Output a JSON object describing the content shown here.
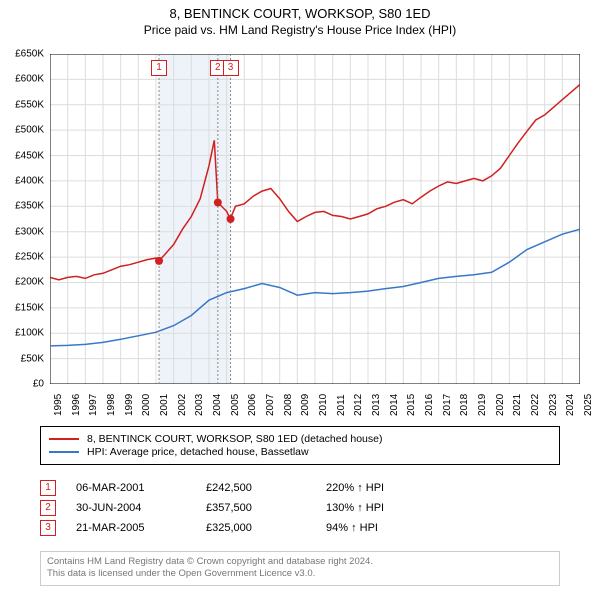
{
  "title": "8, BENTINCK COURT, WORKSOP, S80 1ED",
  "subtitle": "Price paid vs. HM Land Registry's House Price Index (HPI)",
  "chart": {
    "type": "line",
    "background_color": "#ffffff",
    "grid_color": "#dcdcdc",
    "axis_color": "#000000",
    "x_years": [
      1995,
      1996,
      1997,
      1998,
      1999,
      2000,
      2001,
      2002,
      2003,
      2004,
      2005,
      2006,
      2007,
      2008,
      2009,
      2010,
      2011,
      2012,
      2013,
      2014,
      2015,
      2016,
      2017,
      2018,
      2019,
      2020,
      2021,
      2022,
      2023,
      2024,
      2025
    ],
    "ylim": [
      0,
      650000
    ],
    "ytick_step": 50000,
    "ytick_prefix": "£",
    "ytick_suffix": "K",
    "title_fontsize": 13,
    "label_fontsize": 10,
    "series": [
      {
        "name": "8, BENTINCK COURT, WORKSOP, S80 1ED (detached house)",
        "color": "#d02020",
        "line_width": 1.5,
        "data": [
          [
            1995,
            210000
          ],
          [
            1995.5,
            205000
          ],
          [
            1996,
            210000
          ],
          [
            1996.5,
            212000
          ],
          [
            1997,
            208000
          ],
          [
            1997.5,
            215000
          ],
          [
            1998,
            218000
          ],
          [
            1998.5,
            225000
          ],
          [
            1999,
            232000
          ],
          [
            1999.5,
            235000
          ],
          [
            2000,
            240000
          ],
          [
            2000.5,
            245000
          ],
          [
            2001,
            248000
          ],
          [
            2001.17,
            242500
          ],
          [
            2001.5,
            255000
          ],
          [
            2002,
            275000
          ],
          [
            2002.5,
            305000
          ],
          [
            2003,
            330000
          ],
          [
            2003.5,
            365000
          ],
          [
            2004,
            430000
          ],
          [
            2004.3,
            480000
          ],
          [
            2004.5,
            357500
          ],
          [
            2005,
            340000
          ],
          [
            2005.2,
            325000
          ],
          [
            2005.5,
            350000
          ],
          [
            2006,
            355000
          ],
          [
            2006.5,
            370000
          ],
          [
            2007,
            380000
          ],
          [
            2007.5,
            385000
          ],
          [
            2008,
            365000
          ],
          [
            2008.5,
            340000
          ],
          [
            2009,
            320000
          ],
          [
            2009.5,
            330000
          ],
          [
            2010,
            338000
          ],
          [
            2010.5,
            340000
          ],
          [
            2011,
            332000
          ],
          [
            2011.5,
            330000
          ],
          [
            2012,
            325000
          ],
          [
            2012.5,
            330000
          ],
          [
            2013,
            335000
          ],
          [
            2013.5,
            345000
          ],
          [
            2014,
            350000
          ],
          [
            2014.5,
            358000
          ],
          [
            2015,
            363000
          ],
          [
            2015.5,
            355000
          ],
          [
            2016,
            368000
          ],
          [
            2016.5,
            380000
          ],
          [
            2017,
            390000
          ],
          [
            2017.5,
            398000
          ],
          [
            2018,
            395000
          ],
          [
            2018.5,
            400000
          ],
          [
            2019,
            405000
          ],
          [
            2019.5,
            400000
          ],
          [
            2020,
            410000
          ],
          [
            2020.5,
            425000
          ],
          [
            2021,
            450000
          ],
          [
            2021.5,
            475000
          ],
          [
            2022,
            498000
          ],
          [
            2022.5,
            520000
          ],
          [
            2023,
            530000
          ],
          [
            2023.5,
            545000
          ],
          [
            2024,
            560000
          ],
          [
            2024.5,
            575000
          ],
          [
            2025,
            590000
          ]
        ]
      },
      {
        "name": "HPI: Average price, detached house, Bassetlaw",
        "color": "#3878c8",
        "line_width": 1.5,
        "data": [
          [
            1995,
            75000
          ],
          [
            1996,
            76000
          ],
          [
            1997,
            78000
          ],
          [
            1998,
            82000
          ],
          [
            1999,
            88000
          ],
          [
            2000,
            95000
          ],
          [
            2001,
            102000
          ],
          [
            2002,
            115000
          ],
          [
            2003,
            135000
          ],
          [
            2004,
            165000
          ],
          [
            2005,
            180000
          ],
          [
            2006,
            188000
          ],
          [
            2007,
            198000
          ],
          [
            2008,
            190000
          ],
          [
            2009,
            175000
          ],
          [
            2010,
            180000
          ],
          [
            2011,
            178000
          ],
          [
            2012,
            180000
          ],
          [
            2013,
            183000
          ],
          [
            2014,
            188000
          ],
          [
            2015,
            192000
          ],
          [
            2016,
            200000
          ],
          [
            2017,
            208000
          ],
          [
            2018,
            212000
          ],
          [
            2019,
            215000
          ],
          [
            2020,
            220000
          ],
          [
            2021,
            240000
          ],
          [
            2022,
            265000
          ],
          [
            2023,
            280000
          ],
          [
            2024,
            295000
          ],
          [
            2025,
            305000
          ]
        ]
      }
    ],
    "markers": [
      {
        "n": "1",
        "year": 2001.17,
        "price": 242500
      },
      {
        "n": "2",
        "year": 2004.5,
        "price": 357500
      },
      {
        "n": "3",
        "year": 2005.22,
        "price": 325000
      }
    ],
    "marker_band_color": "#eef3fa",
    "marker_dot_color": "#d02020",
    "marker_box_border": "#d02020"
  },
  "legend": {
    "items": [
      {
        "label": "8, BENTINCK COURT, WORKSOP, S80 1ED (detached house)",
        "color": "#d02020"
      },
      {
        "label": "HPI: Average price, detached house, Bassetlaw",
        "color": "#3878c8"
      }
    ]
  },
  "events": [
    {
      "n": "1",
      "date": "06-MAR-2001",
      "price": "£242,500",
      "pct": "220% ↑ HPI"
    },
    {
      "n": "2",
      "date": "30-JUN-2004",
      "price": "£357,500",
      "pct": "130% ↑ HPI"
    },
    {
      "n": "3",
      "date": "21-MAR-2005",
      "price": "£325,000",
      "pct": "94% ↑ HPI"
    }
  ],
  "footer_line1": "Contains HM Land Registry data © Crown copyright and database right 2024.",
  "footer_line2": "This data is licensed under the Open Government Licence v3.0."
}
